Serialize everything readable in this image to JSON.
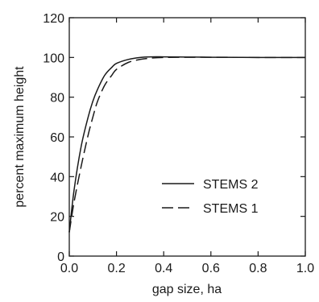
{
  "chart_data": {
    "type": "line",
    "title": "",
    "xlabel": "gap size, ha",
    "ylabel": "percent maximum height",
    "xlim": [
      0.0,
      1.0
    ],
    "ylim": [
      0,
      120
    ],
    "x_ticks": [
      "0.0",
      "0.2",
      "0.4",
      "0.6",
      "0.8",
      "1.0"
    ],
    "y_ticks": [
      "0",
      "20",
      "40",
      "60",
      "80",
      "100",
      "120"
    ],
    "grid": false,
    "legend_position": "lower-right",
    "series": [
      {
        "name": "STEMS 2",
        "line_style": "solid",
        "color": "#1a1a1a",
        "x": [
          0.0,
          0.02,
          0.05,
          0.08,
          0.1,
          0.12,
          0.15,
          0.18,
          0.2,
          0.25,
          0.3,
          0.35,
          0.4,
          0.5,
          0.6,
          0.8,
          1.0
        ],
        "y": [
          12,
          33,
          55,
          70,
          78,
          84,
          91,
          95,
          97,
          99,
          100,
          100.3,
          100.3,
          100.2,
          100.1,
          100,
          100
        ]
      },
      {
        "name": "STEMS 1",
        "line_style": "dashed",
        "color": "#1a1a1a",
        "x": [
          0.0,
          0.02,
          0.05,
          0.08,
          0.1,
          0.12,
          0.15,
          0.18,
          0.2,
          0.25,
          0.3,
          0.35,
          0.4,
          0.5,
          0.6,
          0.8,
          1.0
        ],
        "y": [
          12,
          27,
          45,
          61,
          70,
          78,
          86,
          91,
          94,
          97.5,
          99,
          99.7,
          100,
          100.1,
          100.1,
          100,
          100
        ]
      }
    ]
  }
}
